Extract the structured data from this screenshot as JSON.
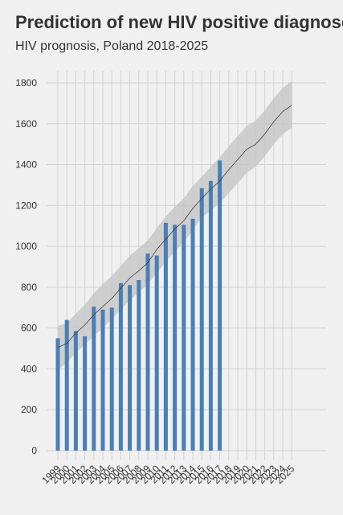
{
  "chart_data": {
    "type": "bar",
    "title": "Prediction of new HIV positive diagnoses",
    "subtitle": "HIV prognosis, Poland 2018-2025",
    "xlabel": "",
    "ylabel": "",
    "categories": [
      "1999",
      "2000",
      "2001",
      "2002",
      "2003",
      "2004",
      "2005",
      "2006",
      "2007",
      "2008",
      "2009",
      "2010",
      "2011",
      "2012",
      "2013",
      "2014",
      "2015",
      "2016",
      "2017",
      "2018",
      "2019",
      "2020",
      "2021",
      "2022",
      "2023",
      "2024",
      "2025"
    ],
    "y_ticks": [
      0,
      200,
      400,
      600,
      800,
      1000,
      1200,
      1400,
      1600,
      1800
    ],
    "ylim": [
      0,
      1870
    ],
    "grid": true,
    "series": [
      {
        "kind": "bar",
        "values": [
          550,
          640,
          585,
          560,
          705,
          690,
          700,
          820,
          810,
          835,
          965,
          955,
          1115,
          1105,
          1105,
          1135,
          1285,
          1320,
          1420,
          null,
          null,
          null,
          null,
          null,
          null,
          null,
          null
        ]
      },
      {
        "kind": "line",
        "values": [
          505,
          525,
          575,
          615,
          665,
          705,
          745,
          795,
          845,
          880,
          920,
          985,
          1035,
          1085,
          1125,
          1185,
          1235,
          1280,
          1320,
          1375,
          1425,
          1475,
          1500,
          1550,
          1610,
          1660,
          1690
        ]
      },
      {
        "kind": "band",
        "lower": [
          395,
          430,
          480,
          520,
          560,
          600,
          645,
          690,
          735,
          775,
          815,
          870,
          925,
          975,
          1020,
          1080,
          1140,
          1175,
          1210,
          1260,
          1310,
          1360,
          1390,
          1440,
          1500,
          1550,
          1580
        ],
        "upper": [
          610,
          625,
          670,
          715,
          770,
          815,
          855,
          905,
          955,
          990,
          1030,
          1090,
          1145,
          1195,
          1235,
          1295,
          1340,
          1390,
          1435,
          1490,
          1540,
          1590,
          1615,
          1665,
          1725,
          1775,
          1810
        ]
      }
    ],
    "colors": {
      "background": "#f0f0f0",
      "grid": "#d2d2d2",
      "bar": "#4a7fb5",
      "line": "#333333",
      "band": "#c8c8c8",
      "text": "#333333"
    }
  }
}
